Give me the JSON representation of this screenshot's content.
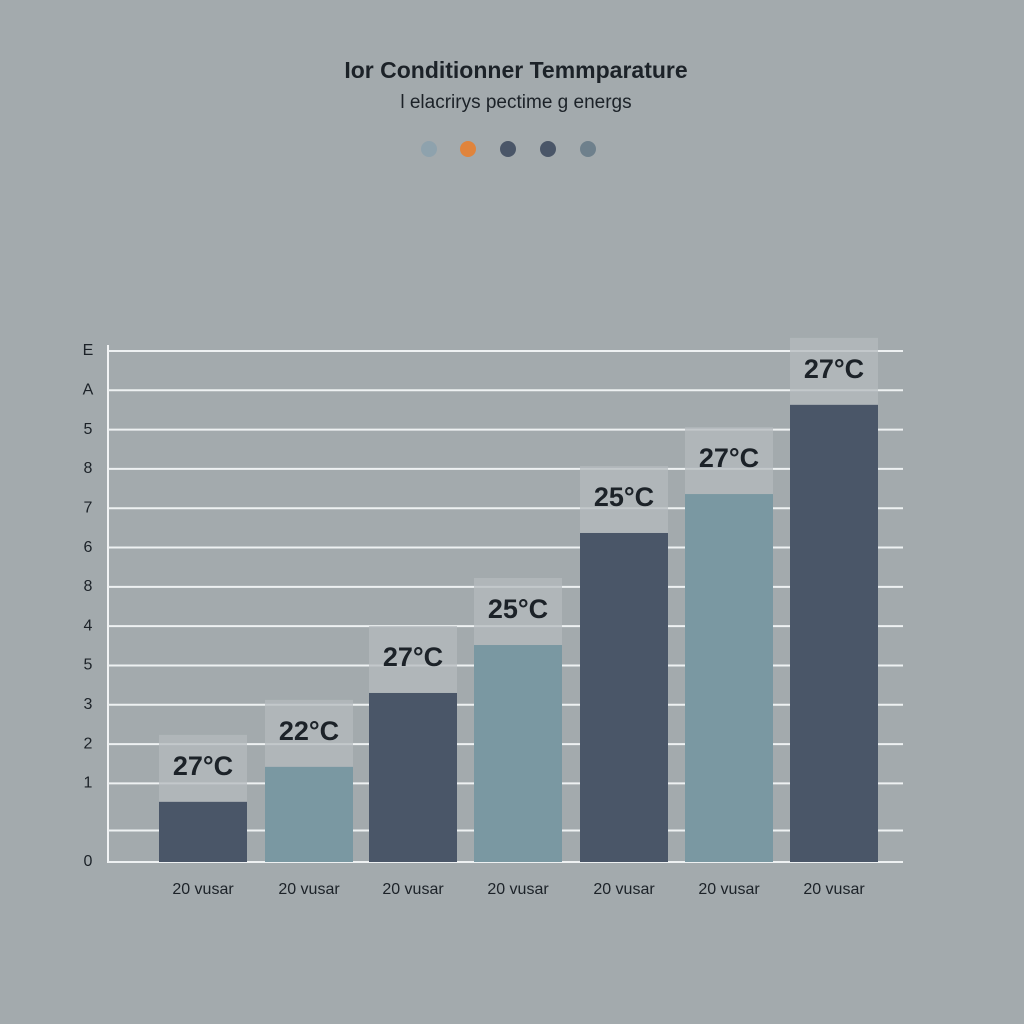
{
  "chart_data": {
    "type": "bar",
    "title": "Ior Conditionner Temmparature",
    "subtitle": "l elacrirys pectime g energs",
    "categories": [
      "20 vusar",
      "20 vusar",
      "20 vusar",
      "20 vusar",
      "20 vusar",
      "20 vusar",
      "20 vusar"
    ],
    "values": [
      1.53,
      2.42,
      4.3,
      5.52,
      8.37,
      9.36,
      11.63
    ],
    "value_labels": [
      "27°C",
      "22°C",
      "27°C",
      "25°C",
      "25°C",
      "27°C",
      "27°C"
    ],
    "colors": [
      "#4a5668",
      "#7a98a2",
      "#4a5668",
      "#7a98a2",
      "#4a5668",
      "#7a98a2",
      "#4a5668"
    ],
    "ylim": [
      0,
      13
    ],
    "yticks": [
      0,
      {
        "value": 0.8,
        "label": null
      },
      {
        "value": 2,
        "label": "1"
      },
      {
        "value": 3,
        "label": "2"
      },
      {
        "value": 4,
        "label": "3"
      },
      5,
      {
        "value": 6,
        "label": "4"
      },
      {
        "value": 7,
        "label": "8"
      },
      {
        "value": 8,
        "label": "6"
      },
      {
        "value": 9,
        "label": "7"
      },
      {
        "value": 10,
        "label": "8"
      },
      {
        "value": 11,
        "label": "5"
      },
      {
        "value": 12,
        "label": "A"
      },
      {
        "value": 13,
        "label": "E"
      }
    ],
    "grid": true
  }
}
